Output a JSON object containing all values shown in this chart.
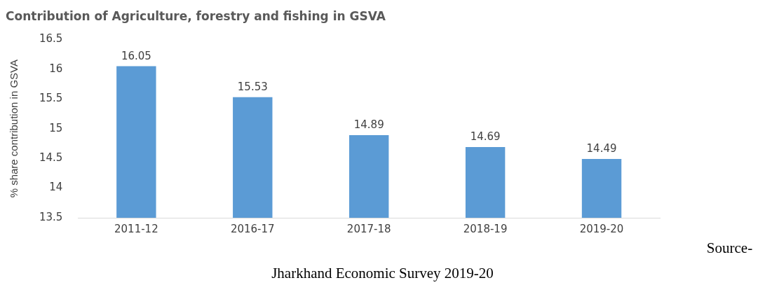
{
  "chart_data": {
    "type": "bar",
    "title": "Contribution of Agriculture, forestry and fishing in GSVA",
    "ylabel": "% share contribution in GSVA",
    "categories": [
      "2011-12",
      "2016-17",
      "2017-18",
      "2018-19",
      "2019-20"
    ],
    "values": [
      16.05,
      15.53,
      14.89,
      14.69,
      14.49
    ],
    "color": "#5b9bd5",
    "ylim": [
      13.5,
      16.5
    ],
    "yticks": [
      13.5,
      14,
      14.5,
      15,
      15.5,
      16,
      16.5
    ],
    "grid": false,
    "data_labels": true,
    "legend": false,
    "annotations": [
      "Source- Jharkhand Economic Survey 2019-20"
    ]
  }
}
